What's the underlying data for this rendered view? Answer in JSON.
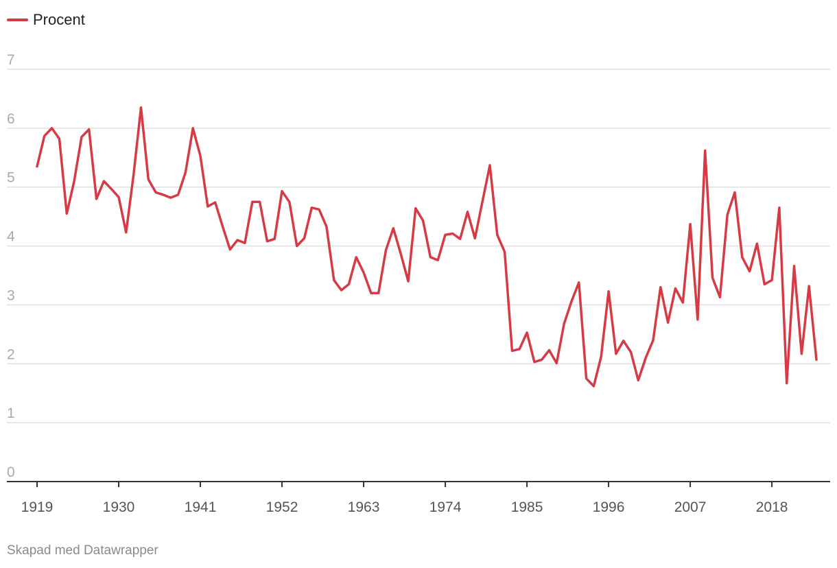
{
  "colors": {
    "series": "#d63a45",
    "grid": "#e0e0e0",
    "axis": "#333333",
    "ytick": "#aaaaaa",
    "xtick": "#555555"
  },
  "legend": {
    "label": "Procent"
  },
  "footer": {
    "credit": "Skapad med Datawrapper"
  },
  "chart_data": {
    "type": "line",
    "title": "",
    "xlabel": "",
    "ylabel": "",
    "legend_position": "top-left",
    "grid": true,
    "xlim": [
      1919,
      2024
    ],
    "ylim": [
      0,
      7
    ],
    "y_ticks": [
      0,
      1,
      2,
      3,
      4,
      5,
      6,
      7
    ],
    "x_ticks": [
      1919,
      1930,
      1941,
      1952,
      1963,
      1974,
      1985,
      1996,
      2007,
      2018
    ],
    "series": [
      {
        "name": "Procent",
        "x": [
          1919,
          1920,
          1921,
          1922,
          1923,
          1924,
          1925,
          1926,
          1927,
          1928,
          1929,
          1930,
          1931,
          1932,
          1933,
          1934,
          1935,
          1936,
          1937,
          1938,
          1939,
          1940,
          1941,
          1942,
          1943,
          1944,
          1945,
          1946,
          1947,
          1948,
          1949,
          1950,
          1951,
          1952,
          1953,
          1954,
          1955,
          1956,
          1957,
          1958,
          1959,
          1960,
          1961,
          1962,
          1963,
          1964,
          1965,
          1966,
          1967,
          1968,
          1969,
          1970,
          1971,
          1972,
          1973,
          1974,
          1975,
          1976,
          1977,
          1978,
          1979,
          1980,
          1981,
          1982,
          1983,
          1984,
          1985,
          1986,
          1987,
          1988,
          1989,
          1990,
          1991,
          1992,
          1993,
          1994,
          1995,
          1996,
          1997,
          1998,
          1999,
          2000,
          2001,
          2002,
          2003,
          2004,
          2005,
          2006,
          2007,
          2008,
          2009,
          2010,
          2011,
          2012,
          2013,
          2014,
          2015,
          2016,
          2017,
          2018,
          2019,
          2020,
          2021,
          2022,
          2023,
          2024
        ],
        "values": [
          5.35,
          5.87,
          6.0,
          5.82,
          4.55,
          5.1,
          5.85,
          5.98,
          4.8,
          5.1,
          4.97,
          4.83,
          4.23,
          5.2,
          6.35,
          5.13,
          4.91,
          4.87,
          4.82,
          4.87,
          5.25,
          6.0,
          5.53,
          4.67,
          4.74,
          4.33,
          3.94,
          4.1,
          4.05,
          4.75,
          4.75,
          4.08,
          4.12,
          4.93,
          4.75,
          4.0,
          4.13,
          4.65,
          4.62,
          4.33,
          3.42,
          3.25,
          3.35,
          3.81,
          3.55,
          3.2,
          3.2,
          3.93,
          4.3,
          3.87,
          3.4,
          4.64,
          4.43,
          3.81,
          3.76,
          4.19,
          4.21,
          4.12,
          4.58,
          4.13,
          4.75,
          5.37,
          4.19,
          3.9,
          2.22,
          2.25,
          2.53,
          2.03,
          2.07,
          2.23,
          2.01,
          2.68,
          3.06,
          3.38,
          1.75,
          1.62,
          2.12,
          3.23,
          2.17,
          2.39,
          2.2,
          1.72,
          2.1,
          2.4,
          3.3,
          2.7,
          3.28,
          3.04,
          4.37,
          2.75,
          5.62,
          3.46,
          3.13,
          4.53,
          4.91,
          3.81,
          3.57,
          4.04,
          3.35,
          3.42,
          4.65,
          1.67,
          3.66,
          2.17,
          3.32,
          2.07
        ]
      }
    ]
  }
}
